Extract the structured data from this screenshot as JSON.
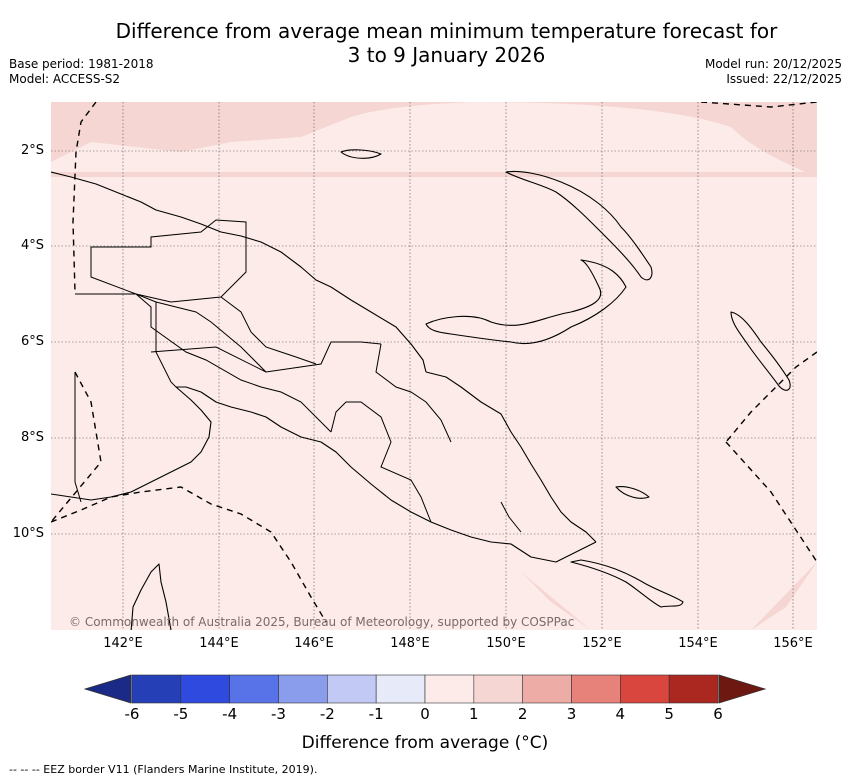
{
  "title": {
    "line1": "Difference from average mean minimum temperature forecast for",
    "line2": "3 to 9 January 2026"
  },
  "meta": {
    "base_period": "Base period: 1981-2018",
    "model": "Model: ACCESS-S2",
    "model_run": "Model run: 20/12/2025",
    "issued": "Issued: 22/12/2025"
  },
  "map": {
    "latitude_labels": [
      "2°S",
      "4°S",
      "6°S",
      "8°S",
      "10°S"
    ],
    "longitude_labels": [
      "142°E",
      "144°E",
      "146°E",
      "148°E",
      "150°E",
      "152°E",
      "154°E",
      "156°E"
    ],
    "copyright": "© Commonwealth of Australia 2025, Bureau of Meteorology, supported by COSPPac",
    "zones": [
      {
        "range": "1 to 2",
        "color": "#f5d6d2",
        "area": "north-east & open ocean"
      },
      {
        "range": "0 to 1",
        "color": "#fcebe8",
        "area": "southwest mainland & Gulf of Papua"
      }
    ]
  },
  "colorbar": {
    "title": "Difference from average (°C)",
    "tick_labels": [
      "-6",
      "-5",
      "-4",
      "-3",
      "-2",
      "-1",
      "0",
      "1",
      "2",
      "3",
      "4",
      "5",
      "6"
    ],
    "colors": {
      "below": "#1b2a86",
      "bins": [
        "#2540b6",
        "#2f4bdf",
        "#5873e8",
        "#8a9cec",
        "#c1c9f4",
        "#e6eaf9",
        "#fcebe8",
        "#f5d6d2",
        "#eeaca6",
        "#e6827a",
        "#d9463d",
        "#ab2820"
      ],
      "above": "#6e1812"
    }
  },
  "footer": {
    "legend": "--  --  -- EEZ border V11 (Flanders Marine Institute, 2019)."
  }
}
